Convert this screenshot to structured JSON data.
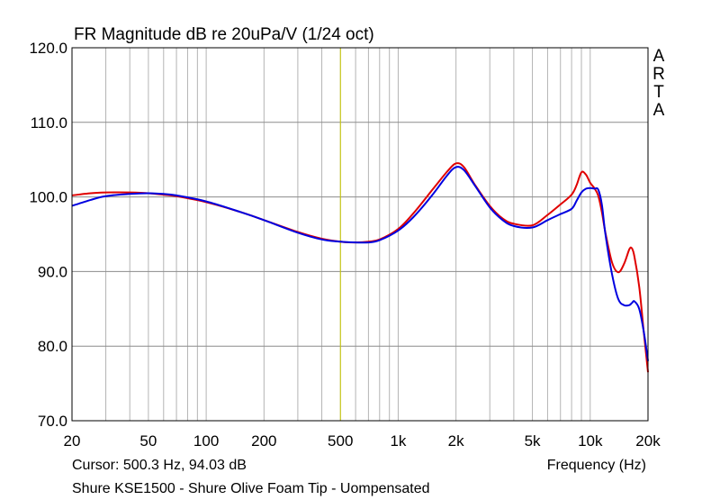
{
  "chart_data": {
    "type": "line",
    "title": "FR Magnitude dB re 20uPa/V (1/24 oct)",
    "xlabel": "Frequency (Hz)",
    "ylabel": "",
    "xscale": "log",
    "xlim": [
      20,
      20000
    ],
    "ylim": [
      70,
      120
    ],
    "grid": true,
    "y_ticks": [
      "120.0",
      "110.0",
      "100.0",
      "90.0",
      "80.0",
      "70.0"
    ],
    "x_ticks": [
      {
        "value": 20,
        "label": "20"
      },
      {
        "value": 50,
        "label": "50"
      },
      {
        "value": 100,
        "label": "100"
      },
      {
        "value": 200,
        "label": "200"
      },
      {
        "value": 500,
        "label": "500"
      },
      {
        "value": 1000,
        "label": "1k"
      },
      {
        "value": 2000,
        "label": "2k"
      },
      {
        "value": 5000,
        "label": "5k"
      },
      {
        "value": 10000,
        "label": "10k"
      },
      {
        "value": 20000,
        "label": "20k"
      }
    ],
    "brand_letters": [
      "A",
      "R",
      "T",
      "A"
    ],
    "cursor": {
      "frequency": 500.3,
      "label": "Cursor: 500.3 Hz, 94.03 dB"
    },
    "caption": "Shure KSE1500 - Shure Olive Foam Tip - Uompensated",
    "series": [
      {
        "color": "#e00000",
        "x": [
          20,
          25,
          30,
          40,
          50,
          60,
          70,
          100,
          150,
          200,
          300,
          400,
          500,
          600,
          700,
          800,
          1000,
          1200,
          1500,
          1800,
          2000,
          2200,
          2500,
          3000,
          3500,
          4000,
          5000,
          6000,
          7000,
          8000,
          8500,
          9000,
          9500,
          10000,
          10500,
          11000,
          11500,
          12000,
          13000,
          14000,
          15000,
          16000,
          16500,
          17000,
          18000,
          19000,
          20000
        ],
        "y": [
          100.2,
          100.5,
          100.6,
          100.6,
          100.5,
          100.3,
          100.1,
          99.3,
          98.0,
          96.9,
          95.3,
          94.4,
          94.0,
          93.9,
          94.0,
          94.3,
          95.7,
          97.8,
          100.9,
          103.4,
          104.5,
          104.0,
          101.7,
          98.8,
          97.1,
          96.4,
          96.2,
          97.6,
          99.0,
          100.3,
          101.6,
          103.3,
          103.0,
          101.9,
          101.2,
          100.2,
          98.0,
          95.2,
          91.2,
          89.9,
          91.0,
          93.0,
          93.1,
          92.0,
          88.0,
          82.0,
          76.5
        ]
      },
      {
        "color": "#0000e0",
        "x": [
          20,
          25,
          30,
          40,
          50,
          60,
          70,
          100,
          150,
          200,
          300,
          400,
          500,
          600,
          700,
          800,
          1000,
          1200,
          1500,
          1800,
          2000,
          2200,
          2500,
          3000,
          3500,
          4000,
          5000,
          6000,
          7000,
          8000,
          8500,
          9000,
          9500,
          10000,
          10500,
          11000,
          11500,
          12000,
          13000,
          14000,
          15000,
          16000,
          16500,
          17000,
          18000,
          19000,
          20000
        ],
        "y": [
          98.8,
          99.6,
          100.1,
          100.4,
          100.5,
          100.4,
          100.2,
          99.4,
          98.0,
          96.9,
          95.2,
          94.3,
          94.0,
          93.9,
          93.9,
          94.2,
          95.5,
          97.3,
          100.2,
          102.9,
          104.0,
          103.6,
          101.6,
          98.6,
          96.9,
          96.1,
          95.9,
          96.9,
          97.7,
          98.4,
          99.5,
          100.6,
          101.1,
          101.2,
          101.1,
          101.0,
          99.0,
          95.0,
          89.6,
          86.3,
          85.5,
          85.5,
          85.8,
          86.0,
          85.0,
          82.0,
          78.0
        ]
      }
    ]
  }
}
